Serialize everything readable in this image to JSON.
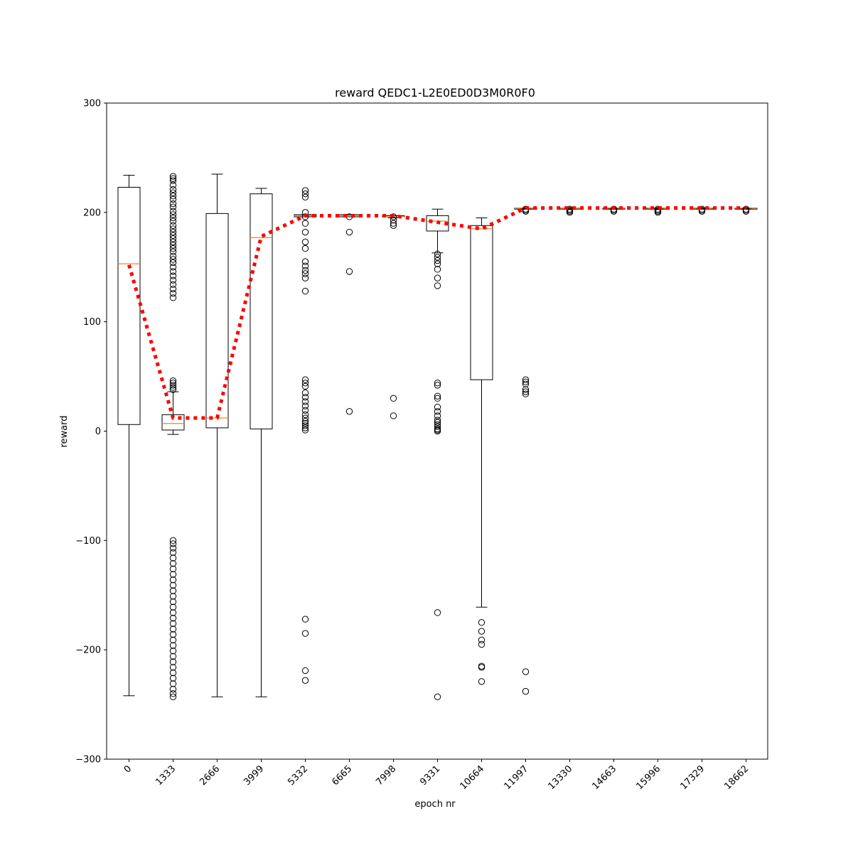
{
  "chart_data": {
    "type": "boxplot",
    "title": "reward QEDC1-L2E0ED0D3M0R0F0",
    "xlabel": "epoch nr",
    "ylabel": "reward",
    "ylim": [
      -300,
      300
    ],
    "yticks": [
      -300,
      -200,
      -100,
      0,
      100,
      200,
      300
    ],
    "ytick_labels": [
      "−300",
      "−200",
      "−100",
      "0",
      "100",
      "200",
      "300"
    ],
    "grid": false,
    "colors": {
      "box": "#000000",
      "median": "#ff7f0e",
      "mean_line": "#ff0000"
    },
    "categories": [
      "0",
      "1333",
      "2666",
      "3999",
      "5332",
      "6665",
      "7998",
      "9331",
      "10664",
      "11997",
      "13330",
      "14663",
      "15996",
      "17329",
      "18662"
    ],
    "boxes": [
      {
        "q1": 6,
        "median": 153,
        "q3": 223,
        "whisker_low": -242,
        "whisker_high": 234,
        "outliers": []
      },
      {
        "q1": 1,
        "median": 7,
        "q3": 15,
        "whisker_low": -3,
        "whisker_high": 36,
        "outliers": [
          233,
          231,
          229,
          225,
          221,
          218,
          215,
          212,
          208,
          205,
          201,
          198,
          195,
          192,
          188,
          185,
          182,
          179,
          176,
          173,
          170,
          167,
          164,
          160,
          157,
          154,
          150,
          146,
          142,
          138,
          134,
          130,
          126,
          122,
          46,
          44,
          42,
          40,
          38,
          -100,
          -103,
          -107,
          -111,
          -116,
          -121,
          -126,
          -131,
          -136,
          -141,
          -146,
          -151,
          -156,
          -161,
          -166,
          -171,
          -176,
          -181,
          -186,
          -191,
          -196,
          -201,
          -206,
          -211,
          -216,
          -221,
          -226,
          -231,
          -236,
          -240,
          -243
        ]
      },
      {
        "q1": 3,
        "median": 12,
        "q3": 199,
        "whisker_low": -243,
        "whisker_high": 235,
        "outliers": []
      },
      {
        "q1": 2,
        "median": 177,
        "q3": 217,
        "whisker_low": -243,
        "whisker_high": 222,
        "outliers": []
      },
      {
        "q1": 196,
        "median": 197,
        "q3": 198,
        "whisker_low": 196,
        "whisker_high": 198,
        "outliers": [
          220,
          217,
          214,
          200,
          196,
          190,
          182,
          173,
          167,
          155,
          151,
          147,
          144,
          140,
          128,
          47,
          44,
          41,
          35,
          31,
          27,
          23,
          19,
          15,
          12,
          9,
          7,
          5,
          3,
          1,
          -172,
          -185,
          -219,
          -228
        ]
      },
      {
        "q1": 196,
        "median": 197,
        "q3": 198,
        "whisker_low": 196,
        "whisker_high": 198,
        "outliers": [
          196,
          182,
          146,
          18
        ]
      },
      {
        "q1": 196,
        "median": 196,
        "q3": 197,
        "whisker_low": 195,
        "whisker_high": 197,
        "outliers": [
          196,
          193,
          190,
          188,
          30,
          14
        ]
      },
      {
        "q1": 183,
        "median": 192,
        "q3": 197,
        "whisker_low": 163,
        "whisker_high": 203,
        "outliers": [
          162,
          159,
          156,
          153,
          148,
          140,
          133,
          44,
          42,
          32,
          30,
          22,
          18,
          14,
          10,
          8,
          6,
          4,
          2,
          1,
          0,
          -166,
          -243
        ]
      },
      {
        "q1": 47,
        "median": 185,
        "q3": 188,
        "whisker_low": -161,
        "whisker_high": 195,
        "outliers": [
          -175,
          -183,
          -191,
          -195,
          -215,
          -216,
          -229
        ]
      },
      {
        "q1": 203,
        "median": 204,
        "q3": 204,
        "whisker_low": 203,
        "whisker_high": 204,
        "outliers": [
          203,
          202,
          201,
          47,
          45,
          43,
          38,
          36,
          34,
          -220,
          -238
        ]
      },
      {
        "q1": 203,
        "median": 204,
        "q3": 204,
        "whisker_low": 203,
        "whisker_high": 204,
        "outliers": [
          203,
          202,
          201,
          200
        ]
      },
      {
        "q1": 203,
        "median": 204,
        "q3": 204,
        "whisker_low": 203,
        "whisker_high": 204,
        "outliers": [
          203,
          202,
          201
        ]
      },
      {
        "q1": 203,
        "median": 204,
        "q3": 204,
        "whisker_low": 203,
        "whisker_high": 204,
        "outliers": [
          203,
          202,
          201,
          200
        ]
      },
      {
        "q1": 203,
        "median": 204,
        "q3": 204,
        "whisker_low": 203,
        "whisker_high": 204,
        "outliers": [
          203,
          202,
          201
        ]
      },
      {
        "q1": 203,
        "median": 204,
        "q3": 204,
        "whisker_low": 203,
        "whisker_high": 204,
        "outliers": [
          203,
          202,
          201
        ]
      }
    ],
    "mean_line": {
      "style": "dotted",
      "values": [
        152,
        12,
        12,
        178,
        197,
        197,
        197,
        191,
        185,
        204,
        204,
        204,
        204,
        204,
        204
      ]
    }
  }
}
